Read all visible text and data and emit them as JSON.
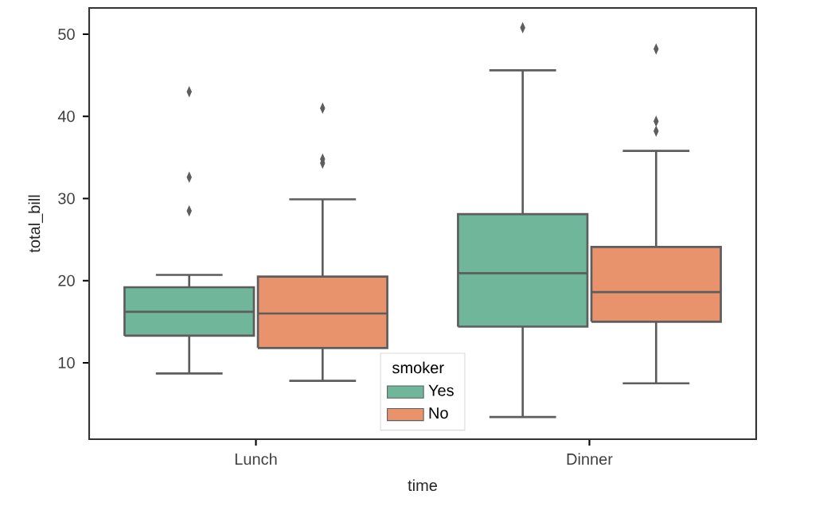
{
  "chart_data": {
    "type": "box",
    "xlabel": "time",
    "ylabel": "total_bill",
    "legend_title": "smoker",
    "categories": [
      "Lunch",
      "Dinner"
    ],
    "ylim": [
      0.7,
      53.2
    ],
    "yticks": [
      10,
      20,
      30,
      40,
      50
    ],
    "grid": false,
    "legend": "bottom",
    "marker": "diamond",
    "series": [
      {
        "name": "Yes",
        "color": "#6fb69b",
        "boxes": [
          {
            "low": 8.7,
            "q1": 13.3,
            "median": 16.2,
            "q3": 19.2,
            "high": 20.7,
            "outliers": [
              28.5,
              32.6,
              43.0
            ]
          },
          {
            "low": 3.4,
            "q1": 14.4,
            "median": 20.9,
            "q3": 28.1,
            "high": 45.6,
            "outliers": [
              50.8
            ]
          }
        ]
      },
      {
        "name": "No",
        "color": "#e8936c",
        "boxes": [
          {
            "low": 7.8,
            "q1": 11.8,
            "median": 16.0,
            "q3": 20.5,
            "high": 29.9,
            "outliers": [
              34.3,
              34.8,
              41.0
            ]
          },
          {
            "low": 7.5,
            "q1": 15.0,
            "median": 18.6,
            "q3": 24.1,
            "high": 35.8,
            "outliers": [
              38.2,
              39.4,
              48.2
            ]
          }
        ]
      }
    ]
  }
}
